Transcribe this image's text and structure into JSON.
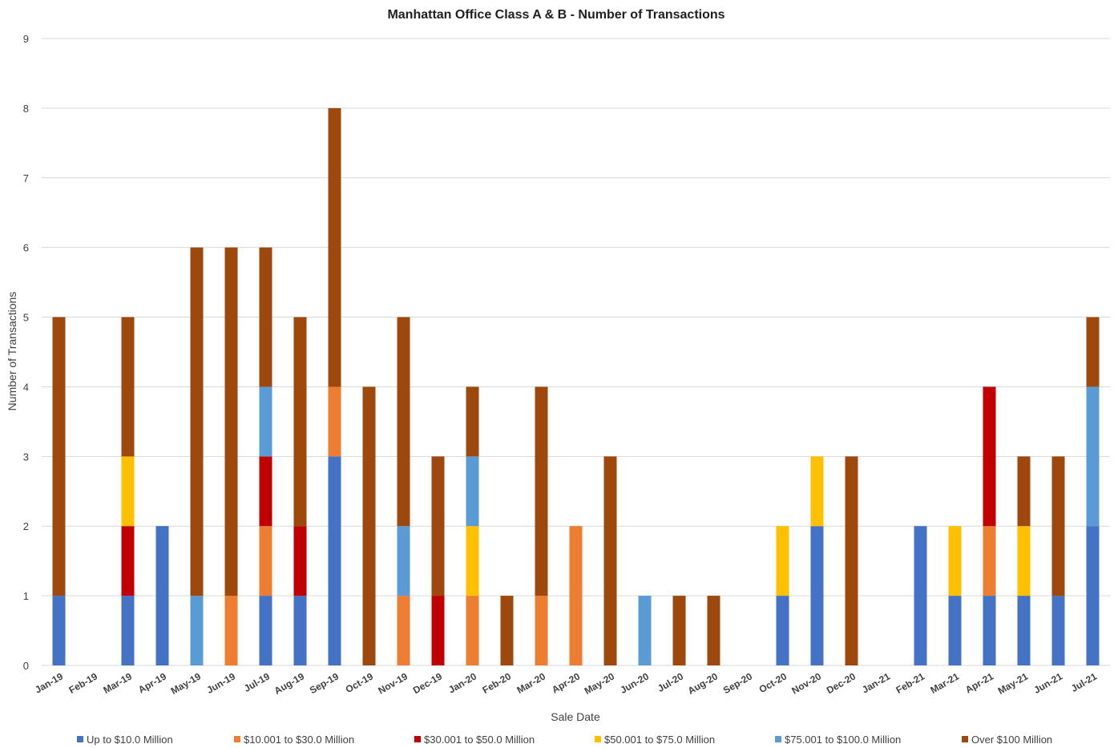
{
  "chart_data": {
    "type": "bar",
    "stacked": true,
    "title": "Manhattan Office Class A & B - Number of Transactions",
    "xlabel": "Sale Date",
    "ylabel": "Number of Transactions",
    "ylim": [
      0,
      9
    ],
    "yticks": [
      0,
      1,
      2,
      3,
      4,
      5,
      6,
      7,
      8,
      9
    ],
    "grid": true,
    "legend_position": "bottom",
    "categories": [
      "Jan-19",
      "Feb-19",
      "Mar-19",
      "Apr-19",
      "May-19",
      "Jun-19",
      "Jul-19",
      "Aug-19",
      "Sep-19",
      "Oct-19",
      "Nov-19",
      "Dec-19",
      "Jan-20",
      "Feb-20",
      "Mar-20",
      "Apr-20",
      "May-20",
      "Jun-20",
      "Jul-20",
      "Aug-20",
      "Sep-20",
      "Oct-20",
      "Nov-20",
      "Dec-20",
      "Jan-21",
      "Feb-21",
      "Mar-21",
      "Apr-21",
      "May-21",
      "Jun-21",
      "Jul-21"
    ],
    "series": [
      {
        "name": "Up to $10.0 Million",
        "color": "#4472c4",
        "values": [
          1,
          0,
          1,
          2,
          0,
          0,
          1,
          1,
          3,
          0,
          0,
          0,
          0,
          0,
          0,
          0,
          0,
          0,
          0,
          0,
          0,
          1,
          2,
          0,
          0,
          2,
          1,
          1,
          1,
          1,
          2
        ]
      },
      {
        "name": "$10.001 to $30.0 Million",
        "color": "#ed7d31",
        "values": [
          0,
          0,
          0,
          0,
          0,
          1,
          1,
          0,
          1,
          0,
          1,
          0,
          1,
          0,
          1,
          2,
          0,
          0,
          0,
          0,
          0,
          0,
          0,
          0,
          0,
          0,
          0,
          1,
          0,
          0,
          0
        ]
      },
      {
        "name": "$30.001 to $50.0 Million",
        "color": "#c00000",
        "values": [
          0,
          0,
          1,
          0,
          0,
          0,
          1,
          1,
          0,
          0,
          0,
          1,
          0,
          0,
          0,
          0,
          0,
          0,
          0,
          0,
          0,
          0,
          0,
          0,
          0,
          0,
          0,
          2,
          0,
          0,
          0
        ]
      },
      {
        "name": "$50.001 to $75.0 Million",
        "color": "#ffc000",
        "values": [
          0,
          0,
          1,
          0,
          0,
          0,
          0,
          0,
          0,
          0,
          0,
          0,
          1,
          0,
          0,
          0,
          0,
          0,
          0,
          0,
          0,
          1,
          1,
          0,
          0,
          0,
          1,
          0,
          1,
          0,
          0
        ]
      },
      {
        "name": "$75.001 to $100.0 Million",
        "color": "#5b9bd5",
        "values": [
          0,
          0,
          0,
          0,
          1,
          0,
          1,
          0,
          0,
          0,
          1,
          0,
          1,
          0,
          0,
          0,
          0,
          1,
          0,
          0,
          0,
          0,
          0,
          0,
          0,
          0,
          0,
          0,
          0,
          0,
          2
        ]
      },
      {
        "name": "Over $100 Million",
        "color": "#9e480e",
        "values": [
          4,
          0,
          2,
          0,
          5,
          5,
          2,
          3,
          4,
          4,
          3,
          2,
          1,
          1,
          3,
          0,
          3,
          0,
          1,
          1,
          0,
          0,
          0,
          3,
          0,
          0,
          0,
          0,
          1,
          2,
          1
        ]
      }
    ]
  }
}
